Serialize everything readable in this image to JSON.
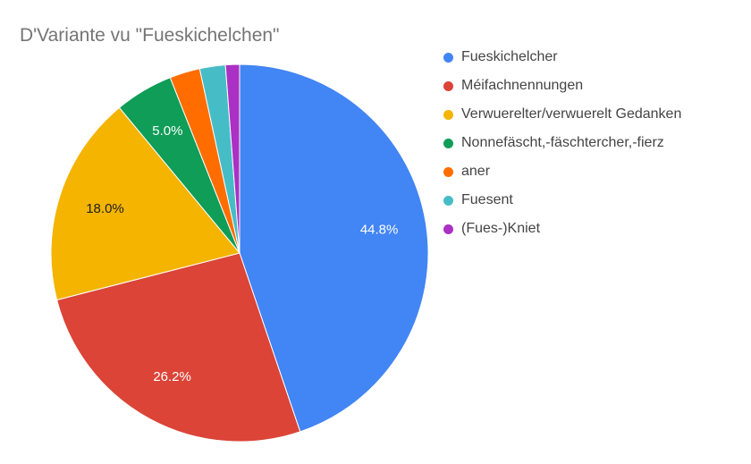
{
  "chart_data": {
    "type": "pie",
    "title": "D'Variante vu \"Fueskichelchen\"",
    "legend_position": "right",
    "series": [
      {
        "name": "Fueskichelcher",
        "value": 44.8,
        "label": "44.8%",
        "color": "#4285f4",
        "label_color": "#ffffff"
      },
      {
        "name": "Méifachnennungen",
        "value": 26.2,
        "label": "26.2%",
        "color": "#db4437",
        "label_color": "#ffffff"
      },
      {
        "name": "Verwuerelter/verwuerelt Gedanken",
        "value": 18.0,
        "label": "18.0%",
        "color": "#f4b400",
        "label_color": "#222222"
      },
      {
        "name": "Nonnefäscht,-fäschtercher,-fierz",
        "value": 5.0,
        "label": "5.0%",
        "color": "#0f9d58",
        "label_color": "#ffffff"
      },
      {
        "name": "aner",
        "value": 2.6,
        "label": "",
        "color": "#ff6d00",
        "label_color": "#ffffff"
      },
      {
        "name": "Fuesent",
        "value": 2.2,
        "label": "",
        "color": "#46bdc6",
        "label_color": "#ffffff"
      },
      {
        "name": "(Fues-)Kniet",
        "value": 1.2,
        "label": "",
        "color": "#ab30c4",
        "label_color": "#ffffff"
      }
    ]
  }
}
